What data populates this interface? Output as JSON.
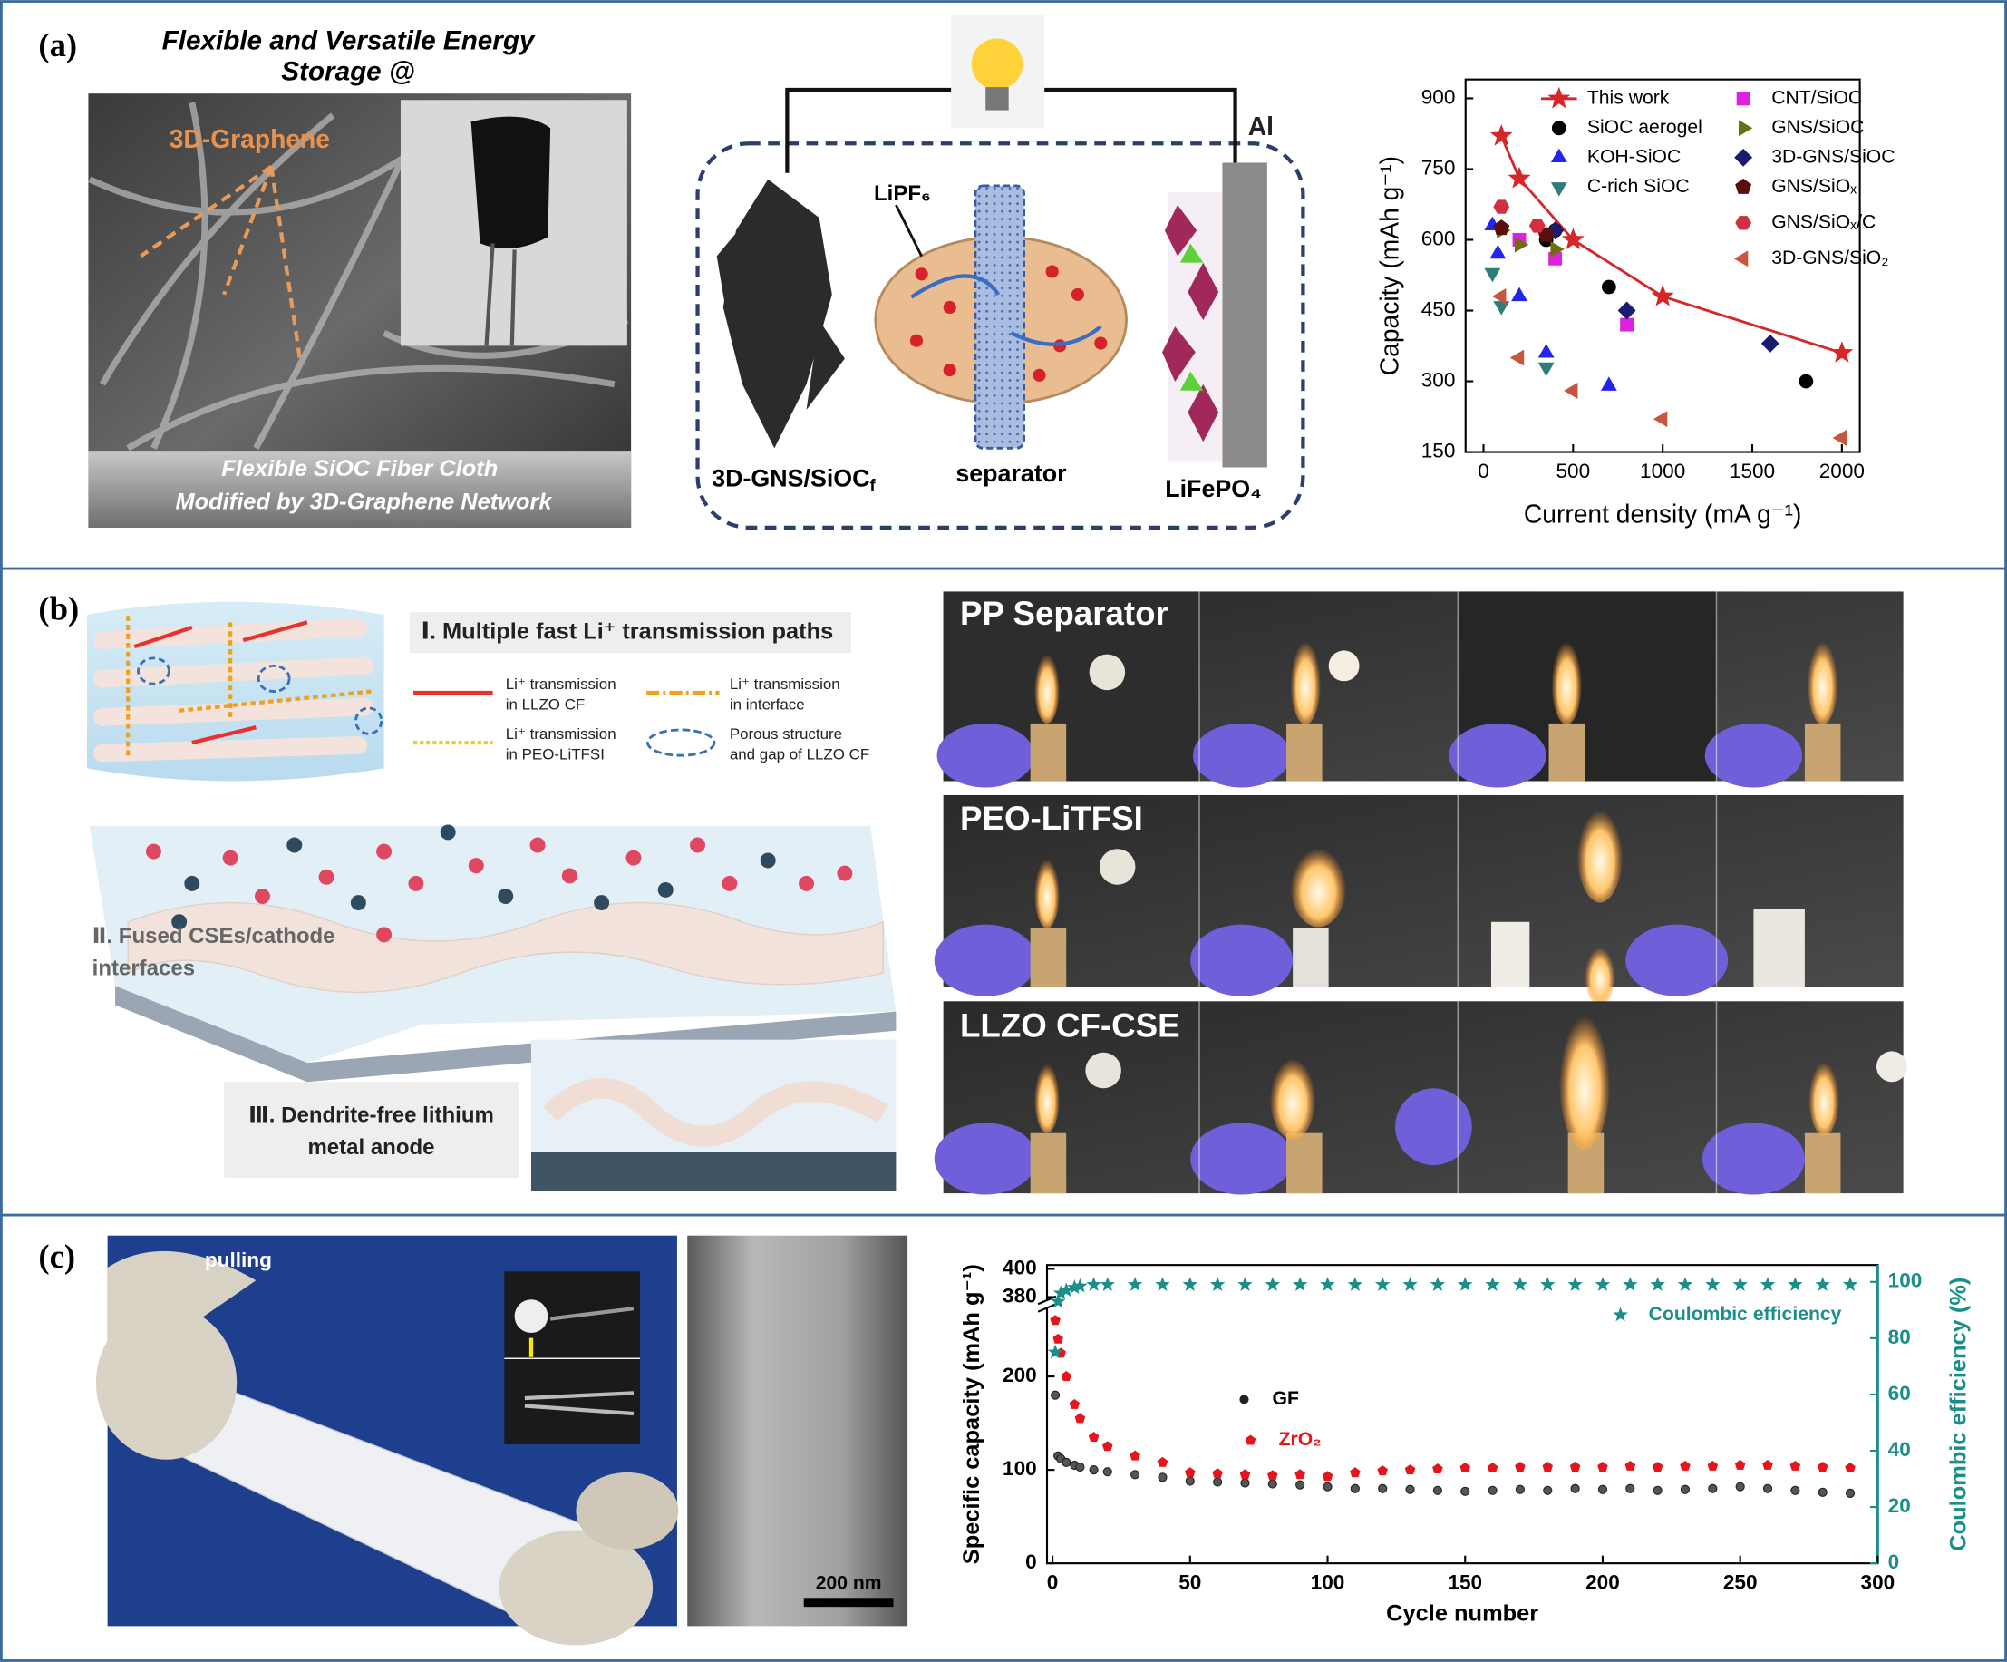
{
  "panel_labels": [
    "(a)",
    "(b)",
    "(c)"
  ],
  "panel_a": {
    "title": [
      "Flexible and Versatile Energy",
      "Storage @"
    ],
    "photo_label": "3D-Graphene",
    "caption": [
      "Flexible SiOC Fiber Cloth",
      "Modified by 3D-Graphene Network"
    ],
    "schematic": {
      "collector": "Al",
      "salt": "LiPF₆",
      "anode": "3D-GNS/SiOC",
      "anode_sub": "f",
      "separator": "separator",
      "cathode": "LiFePO₄"
    }
  },
  "panel_b": {
    "heading1": "Ⅰ. Multiple fast Li⁺ transmission paths",
    "legend": [
      [
        "Li⁺ transmission",
        "in LLZO CF"
      ],
      [
        "Li⁺ transmission",
        "in interface"
      ],
      [
        "Li⁺ transmission",
        "in PEO-LiTFSI"
      ],
      [
        "Porous structure",
        "and gap of LLZO CF"
      ]
    ],
    "heading2": [
      "Ⅱ. Fused CSEs/cathode",
      "interfaces"
    ],
    "heading3": [
      "Ⅲ. Dendrite-free lithium",
      "metal anode"
    ],
    "photo_rows": [
      "PP Separator",
      "PEO-LiTFSI",
      "LLZO CF-CSE"
    ]
  },
  "panel_c": {
    "photo_label": "pulling",
    "scale_bar": "200 nm"
  },
  "chart_data": [
    {
      "type": "scatter",
      "x_label": "Current density (mA g⁻¹)",
      "y_label": "Capacity (mAh g⁻¹)",
      "xlim": [
        -100,
        2100
      ],
      "xticks": [
        0,
        500,
        1000,
        1500,
        2000
      ],
      "ylim": [
        150,
        940
      ],
      "yticks": [
        150,
        300,
        450,
        600,
        750,
        900
      ],
      "series": [
        {
          "name": "This work",
          "color": "#d62728",
          "marker": "star",
          "line": true,
          "x": [
            100,
            200,
            500,
            1000,
            2000
          ],
          "values": [
            820,
            730,
            600,
            480,
            360
          ]
        },
        {
          "name": "SiOC aerogel",
          "color": "#000000",
          "marker": "circle",
          "x": [
            350,
            400,
            700,
            1800
          ],
          "values": [
            600,
            620,
            500,
            300
          ]
        },
        {
          "name": "KOH-SiOC",
          "color": "#2424ee",
          "marker": "triangle-up",
          "x": [
            50,
            80,
            200,
            350,
            700
          ],
          "values": [
            630,
            570,
            480,
            360,
            290
          ]
        },
        {
          "name": "C-rich SiOC",
          "color": "#2e7d7a",
          "marker": "triangle-down",
          "x": [
            50,
            100,
            350
          ],
          "values": [
            530,
            460,
            330
          ]
        },
        {
          "name": "CNT/SiOC",
          "color": "#e020e0",
          "marker": "square",
          "x": [
            200,
            400,
            800
          ],
          "values": [
            600,
            560,
            420
          ]
        },
        {
          "name": "GNS/SiOC",
          "color": "#6e6e10",
          "marker": "triangle-right",
          "x": [
            100,
            200,
            400
          ],
          "values": [
            620,
            590,
            580
          ]
        },
        {
          "name": "3D-GNS/SiOC",
          "color": "#1a1a6e",
          "marker": "diamond",
          "x": [
            400,
            800,
            1600
          ],
          "values": [
            620,
            450,
            380
          ]
        },
        {
          "name": "GNS/SiOₓ",
          "color": "#5a0f0f",
          "marker": "pentagon",
          "x": [
            100,
            350
          ],
          "values": [
            625,
            610
          ]
        },
        {
          "name": "GNS/SiOₓ/C",
          "color": "#d03040",
          "marker": "hexagon",
          "x": [
            100,
            300
          ],
          "values": [
            670,
            630
          ]
        },
        {
          "name": "3D-GNS/SiO₂",
          "color": "#c8553d",
          "marker": "triangle-left",
          "x": [
            100,
            200,
            500,
            1000,
            2000
          ],
          "values": [
            480,
            350,
            280,
            220,
            180
          ]
        }
      ]
    },
    {
      "type": "scatter",
      "x_label": "Cycle number",
      "y_label": "Specific capacity  (mAh g⁻¹)",
      "y2_label": "Coulombic efficiency (%)",
      "xlim": [
        -2,
        300
      ],
      "xticks": [
        0,
        50,
        100,
        150,
        200,
        250,
        300
      ],
      "ylim": [
        0,
        400
      ],
      "y_break": [
        270,
        380
      ],
      "yticks": [
        0,
        100,
        200,
        380,
        400
      ],
      "y2lim": [
        0,
        106
      ],
      "y2ticks": [
        0,
        20,
        40,
        60,
        80,
        100
      ],
      "series": [
        {
          "name": "GF",
          "color": "#222222",
          "marker": "circle",
          "x": [
            1,
            2,
            3,
            5,
            8,
            10,
            15,
            20,
            30,
            40,
            50,
            60,
            70,
            80,
            90,
            100,
            110,
            120,
            130,
            140,
            150,
            160,
            170,
            180,
            190,
            200,
            210,
            220,
            230,
            240,
            250,
            260,
            270,
            280,
            290
          ],
          "values": [
            180,
            115,
            112,
            108,
            105,
            103,
            100,
            98,
            95,
            92,
            88,
            87,
            86,
            85,
            84,
            82,
            80,
            80,
            79,
            78,
            77,
            78,
            79,
            78,
            80,
            79,
            80,
            78,
            79,
            80,
            82,
            80,
            78,
            76,
            75
          ]
        },
        {
          "name": "ZrO₂",
          "color": "#e8141b",
          "marker": "pentagon",
          "x": [
            1,
            2,
            3,
            5,
            8,
            10,
            15,
            20,
            30,
            40,
            50,
            60,
            70,
            80,
            90,
            100,
            110,
            120,
            130,
            140,
            150,
            160,
            170,
            180,
            190,
            200,
            210,
            220,
            230,
            240,
            250,
            260,
            270,
            280,
            290
          ],
          "values": [
            260,
            240,
            225,
            200,
            170,
            155,
            135,
            125,
            115,
            108,
            97,
            96,
            95,
            94,
            95,
            93,
            97,
            99,
            100,
            101,
            102,
            102,
            103,
            103,
            103,
            103,
            104,
            103,
            104,
            104,
            105,
            105,
            104,
            103,
            102
          ]
        },
        {
          "name": "Coulombic efficiency",
          "color": "#1a8f8a",
          "marker": "star",
          "axis": "y2",
          "x": [
            1,
            2,
            3,
            5,
            8,
            10,
            15,
            20,
            30,
            40,
            50,
            60,
            70,
            80,
            90,
            100,
            110,
            120,
            130,
            140,
            150,
            160,
            170,
            180,
            190,
            200,
            210,
            220,
            230,
            240,
            250,
            260,
            270,
            280,
            290
          ],
          "values": [
            75,
            93,
            96,
            97,
            98,
            98.5,
            99,
            99,
            99,
            99,
            99,
            99,
            99,
            99,
            99,
            99,
            99,
            99,
            99,
            99,
            99,
            99,
            99,
            99,
            99,
            99,
            99,
            99,
            99,
            99,
            99,
            99,
            99,
            99,
            99
          ]
        }
      ]
    }
  ]
}
